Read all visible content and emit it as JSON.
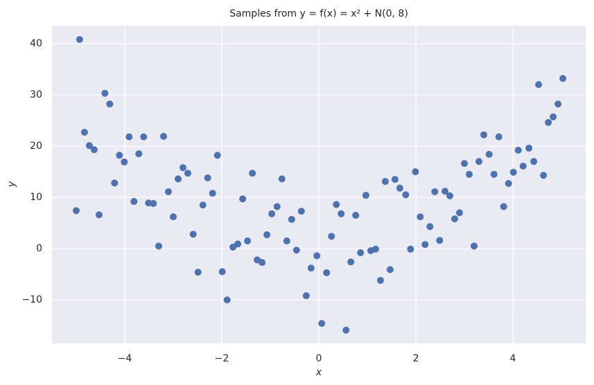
{
  "chart_data": {
    "type": "scatter",
    "title": "Samples from y = f(x) = x² + N(0, 8)",
    "x_label": "x",
    "y_label": "y",
    "color": "#4c72b0",
    "grid": true,
    "xlim": [
      -5.5,
      5.5
    ],
    "ylim": [
      -18.5,
      43.5
    ],
    "xticks": [
      {
        "value": -4,
        "label": "−4"
      },
      {
        "value": -2,
        "label": "−2"
      },
      0,
      2,
      4
    ],
    "yticks": [
      {
        "value": -10,
        "label": "−10"
      },
      0,
      10,
      20,
      30,
      40
    ],
    "x": [
      -5.0,
      -4.93,
      -4.83,
      -4.73,
      -4.63,
      -4.53,
      -4.41,
      -4.31,
      -4.21,
      -4.11,
      -4.01,
      -3.91,
      -3.81,
      -3.71,
      -3.61,
      -3.51,
      -3.41,
      -3.3,
      -3.2,
      -3.1,
      -3.0,
      -2.9,
      -2.8,
      -2.7,
      -2.59,
      -2.49,
      -2.39,
      -2.29,
      -2.19,
      -2.09,
      -1.99,
      -1.89,
      -1.77,
      -1.67,
      -1.57,
      -1.47,
      -1.37,
      -1.27,
      -1.17,
      -1.07,
      -0.97,
      -0.86,
      -0.76,
      -0.66,
      -0.56,
      -0.46,
      -0.36,
      -0.26,
      -0.16,
      -0.04,
      0.06,
      0.16,
      0.26,
      0.36,
      0.46,
      0.56,
      0.66,
      0.76,
      0.86,
      0.97,
      1.07,
      1.17,
      1.27,
      1.37,
      1.47,
      1.57,
      1.67,
      1.79,
      1.89,
      1.99,
      2.09,
      2.19,
      2.29,
      2.39,
      2.49,
      2.6,
      2.7,
      2.8,
      2.9,
      3.0,
      3.1,
      3.2,
      3.3,
      3.4,
      3.51,
      3.61,
      3.71,
      3.81,
      3.91,
      4.01,
      4.11,
      4.21,
      4.33,
      4.43,
      4.53,
      4.63,
      4.73,
      4.83,
      4.93,
      5.03
    ],
    "values": [
      7.4,
      40.8,
      22.7,
      20.1,
      19.3,
      6.6,
      30.3,
      28.2,
      12.8,
      18.2,
      16.9,
      21.8,
      9.2,
      18.5,
      21.8,
      8.9,
      8.8,
      0.5,
      21.9,
      11.1,
      6.2,
      13.6,
      15.8,
      14.7,
      2.8,
      -4.6,
      8.5,
      13.8,
      10.8,
      18.2,
      -4.5,
      -10,
      0.3,
      0.9,
      9.7,
      1.5,
      14.7,
      -2.2,
      -2.7,
      2.7,
      6.8,
      8.2,
      13.6,
      1.5,
      5.7,
      -0.3,
      7.3,
      -9.2,
      -3.8,
      -1.4,
      -14.6,
      -4.7,
      2.4,
      8.6,
      6.8,
      -15.9,
      -2.6,
      6.5,
      -0.8,
      10.4,
      -0.4,
      -0.1,
      -6.2,
      13.1,
      -4.1,
      13.5,
      11.8,
      10.5,
      -0.1,
      15,
      6.2,
      0.8,
      4.3,
      11.1,
      1.6,
      11.2,
      10.3,
      5.8,
      7,
      16.6,
      14.5,
      0.5,
      17,
      22.2,
      18.4,
      14.5,
      21.8,
      8.2,
      12.7,
      14.9,
      19.2,
      16.1,
      19.6,
      17,
      32,
      14.3,
      24.6,
      25.7,
      28.2,
      33.2
    ]
  }
}
